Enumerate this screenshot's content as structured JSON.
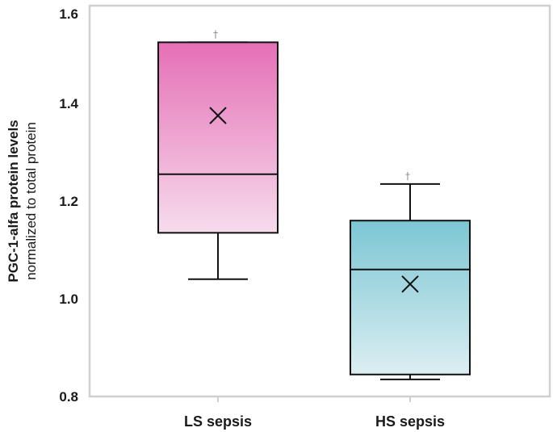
{
  "chart_data": {
    "type": "boxplot",
    "ylabel": "PGC-1-alfa protein levels",
    "ylabel_sub": "normalized to total protein",
    "ylim": [
      0.8,
      1.6
    ],
    "yticks": [
      0.8,
      1.0,
      1.2,
      1.4,
      1.6
    ],
    "ytick_labels": [
      "0.8",
      "1.0",
      "1.2",
      "1.4",
      "1.6"
    ],
    "grid": false,
    "categories": [
      "LS sepsis",
      "HS sepsis"
    ],
    "boxes": [
      {
        "category": "LS sepsis",
        "whisker_low": 1.04,
        "q1": 1.135,
        "median": 1.255,
        "mean": 1.375,
        "q3": 1.525,
        "whisker_high": 1.525,
        "marker": "†",
        "color_top": "#e56fb6",
        "color_bottom": "#f6dcec"
      },
      {
        "category": "HS sepsis",
        "whisker_low": 0.835,
        "q1": 0.845,
        "median": 1.06,
        "mean": 1.03,
        "q3": 1.16,
        "whisker_high": 1.235,
        "marker": "†",
        "color_top": "#7cc6d4",
        "color_bottom": "#dbeef2"
      }
    ]
  }
}
